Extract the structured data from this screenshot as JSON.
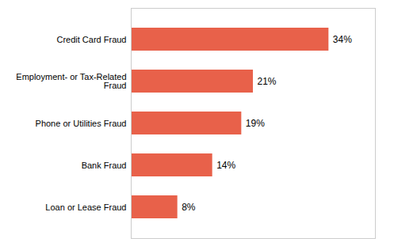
{
  "chart_data": {
    "type": "bar",
    "orientation": "horizontal",
    "categories": [
      "Loan or Lease Fraud",
      "Bank Fraud",
      "Phone or Utilities Fraud",
      "Employment- or Tax-Related\nFraud",
      "Credit Card Fraud"
    ],
    "values": [
      8,
      14,
      19,
      21,
      34
    ],
    "value_labels": [
      "8%",
      "14%",
      "19%",
      "21%",
      "34%"
    ],
    "data_labels": true,
    "color": "#E8614A",
    "xlim": [
      0,
      42
    ],
    "tick_labels": "y",
    "grid": false
  }
}
